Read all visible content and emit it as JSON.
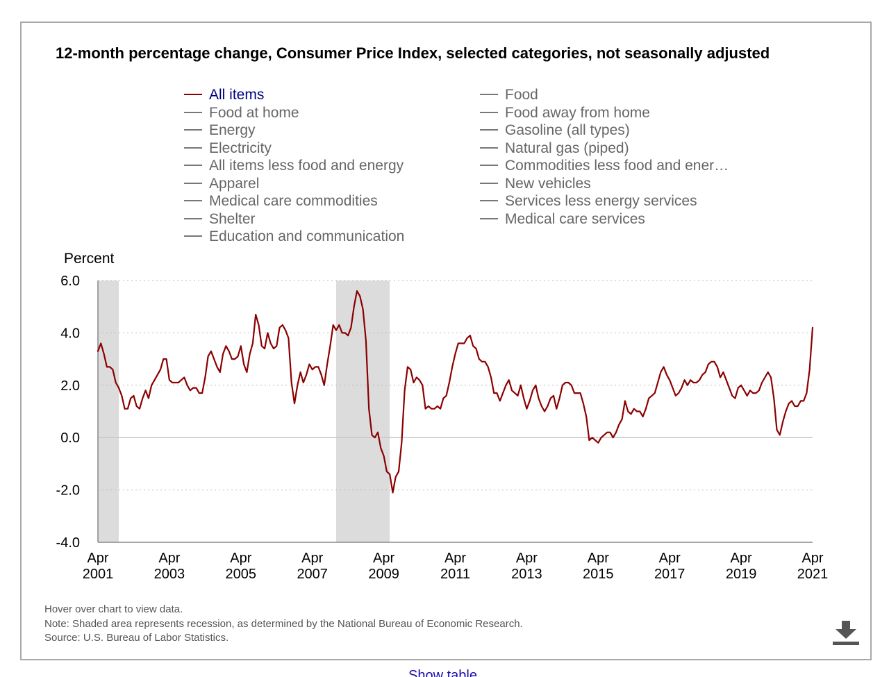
{
  "chart_title": "12-month percentage change, Consumer Price Index, selected categories, not seasonally adjusted",
  "legend": {
    "left": [
      "All items",
      "Food at home",
      "Energy",
      "Electricity",
      "All items less food and energy",
      "Apparel",
      "Medical care commodities",
      "Shelter",
      "Education and communication"
    ],
    "right": [
      "Food",
      "Food away from home",
      "Gasoline (all types)",
      "Natural gas (piped)",
      "Commodities less food and ener…",
      "New vehicles",
      "Services less energy services",
      "Medical care services"
    ]
  },
  "notes": {
    "hover": "Hover over chart to view data.",
    "note": "Note: Shaded area represents recession, as determined by the National Bureau of Economic Research.",
    "source": "Source: U.S. Bureau of Labor Statistics."
  },
  "show_table": "Show table",
  "colors": {
    "series": "#8b0000",
    "legend_active": "#000080",
    "recession": "#dcdcdc",
    "grid": "#bbbbbb"
  },
  "icons": {
    "download": "download-icon"
  },
  "chart_data": {
    "type": "line",
    "ylabel": "Percent",
    "ylim": [
      -4.0,
      6.0
    ],
    "yticks": [
      "6.0",
      "4.0",
      "2.0",
      "0.0",
      "-2.0",
      "-4.0"
    ],
    "xticks": [
      {
        "month": "Apr",
        "year": "2001"
      },
      {
        "month": "Apr",
        "year": "2003"
      },
      {
        "month": "Apr",
        "year": "2005"
      },
      {
        "month": "Apr",
        "year": "2007"
      },
      {
        "month": "Apr",
        "year": "2009"
      },
      {
        "month": "Apr",
        "year": "2011"
      },
      {
        "month": "Apr",
        "year": "2013"
      },
      {
        "month": "Apr",
        "year": "2015"
      },
      {
        "month": "Apr",
        "year": "2017"
      },
      {
        "month": "Apr",
        "year": "2019"
      },
      {
        "month": "Apr",
        "year": "2021"
      }
    ],
    "grid": true,
    "legend_position": "top",
    "recessions": [
      [
        "2001-03",
        "2001-11"
      ],
      [
        "2007-12",
        "2009-06"
      ]
    ],
    "series": [
      {
        "name": "All items",
        "color": "#8b0000",
        "x": [
          "2001-04",
          "2001-05",
          "2001-06",
          "2001-07",
          "2001-08",
          "2001-09",
          "2001-10",
          "2001-11",
          "2001-12",
          "2002-01",
          "2002-02",
          "2002-03",
          "2002-04",
          "2002-05",
          "2002-06",
          "2002-07",
          "2002-08",
          "2002-09",
          "2002-10",
          "2002-11",
          "2002-12",
          "2003-01",
          "2003-02",
          "2003-03",
          "2003-04",
          "2003-05",
          "2003-06",
          "2003-07",
          "2003-08",
          "2003-09",
          "2003-10",
          "2003-11",
          "2003-12",
          "2004-01",
          "2004-02",
          "2004-03",
          "2004-04",
          "2004-05",
          "2004-06",
          "2004-07",
          "2004-08",
          "2004-09",
          "2004-10",
          "2004-11",
          "2004-12",
          "2005-01",
          "2005-02",
          "2005-03",
          "2005-04",
          "2005-05",
          "2005-06",
          "2005-07",
          "2005-08",
          "2005-09",
          "2005-10",
          "2005-11",
          "2005-12",
          "2006-01",
          "2006-02",
          "2006-03",
          "2006-04",
          "2006-05",
          "2006-06",
          "2006-07",
          "2006-08",
          "2006-09",
          "2006-10",
          "2006-11",
          "2006-12",
          "2007-01",
          "2007-02",
          "2007-03",
          "2007-04",
          "2007-05",
          "2007-06",
          "2007-07",
          "2007-08",
          "2007-09",
          "2007-10",
          "2007-11",
          "2007-12",
          "2008-01",
          "2008-02",
          "2008-03",
          "2008-04",
          "2008-05",
          "2008-06",
          "2008-07",
          "2008-08",
          "2008-09",
          "2008-10",
          "2008-11",
          "2008-12",
          "2009-01",
          "2009-02",
          "2009-03",
          "2009-04",
          "2009-05",
          "2009-06",
          "2009-07",
          "2009-08",
          "2009-09",
          "2009-10",
          "2009-11",
          "2009-12",
          "2010-01",
          "2010-02",
          "2010-03",
          "2010-04",
          "2010-05",
          "2010-06",
          "2010-07",
          "2010-08",
          "2010-09",
          "2010-10",
          "2010-11",
          "2010-12",
          "2011-01",
          "2011-02",
          "2011-03",
          "2011-04",
          "2011-05",
          "2011-06",
          "2011-07",
          "2011-08",
          "2011-09",
          "2011-10",
          "2011-11",
          "2011-12",
          "2012-01",
          "2012-02",
          "2012-03",
          "2012-04",
          "2012-05",
          "2012-06",
          "2012-07",
          "2012-08",
          "2012-09",
          "2012-10",
          "2012-11",
          "2012-12",
          "2013-01",
          "2013-02",
          "2013-03",
          "2013-04",
          "2013-05",
          "2013-06",
          "2013-07",
          "2013-08",
          "2013-09",
          "2013-10",
          "2013-11",
          "2013-12",
          "2014-01",
          "2014-02",
          "2014-03",
          "2014-04",
          "2014-05",
          "2014-06",
          "2014-07",
          "2014-08",
          "2014-09",
          "2014-10",
          "2014-11",
          "2014-12",
          "2015-01",
          "2015-02",
          "2015-03",
          "2015-04",
          "2015-05",
          "2015-06",
          "2015-07",
          "2015-08",
          "2015-09",
          "2015-10",
          "2015-11",
          "2015-12",
          "2016-01",
          "2016-02",
          "2016-03",
          "2016-04",
          "2016-05",
          "2016-06",
          "2016-07",
          "2016-08",
          "2016-09",
          "2016-10",
          "2016-11",
          "2016-12",
          "2017-01",
          "2017-02",
          "2017-03",
          "2017-04",
          "2017-05",
          "2017-06",
          "2017-07",
          "2017-08",
          "2017-09",
          "2017-10",
          "2017-11",
          "2017-12",
          "2018-01",
          "2018-02",
          "2018-03",
          "2018-04",
          "2018-05",
          "2018-06",
          "2018-07",
          "2018-08",
          "2018-09",
          "2018-10",
          "2018-11",
          "2018-12",
          "2019-01",
          "2019-02",
          "2019-03",
          "2019-04",
          "2019-05",
          "2019-06",
          "2019-07",
          "2019-08",
          "2019-09",
          "2019-10",
          "2019-11",
          "2019-12",
          "2020-01",
          "2020-02",
          "2020-03",
          "2020-04",
          "2020-05",
          "2020-06",
          "2020-07",
          "2020-08",
          "2020-09",
          "2020-10",
          "2020-11",
          "2020-12",
          "2021-01",
          "2021-02",
          "2021-03",
          "2021-04"
        ],
        "values": [
          3.3,
          3.6,
          3.2,
          2.7,
          2.7,
          2.6,
          2.1,
          1.9,
          1.6,
          1.1,
          1.1,
          1.5,
          1.6,
          1.2,
          1.1,
          1.5,
          1.8,
          1.5,
          2.0,
          2.2,
          2.4,
          2.6,
          3.0,
          3.0,
          2.2,
          2.1,
          2.1,
          2.1,
          2.2,
          2.3,
          2.0,
          1.8,
          1.9,
          1.9,
          1.7,
          1.7,
          2.3,
          3.1,
          3.3,
          3.0,
          2.7,
          2.5,
          3.2,
          3.5,
          3.3,
          3.0,
          3.0,
          3.1,
          3.5,
          2.8,
          2.5,
          3.2,
          3.6,
          4.7,
          4.3,
          3.5,
          3.4,
          4.0,
          3.6,
          3.4,
          3.5,
          4.2,
          4.3,
          4.1,
          3.8,
          2.1,
          1.3,
          2.0,
          2.5,
          2.1,
          2.4,
          2.8,
          2.6,
          2.7,
          2.7,
          2.4,
          2.0,
          2.8,
          3.5,
          4.3,
          4.1,
          4.3,
          4.0,
          4.0,
          3.9,
          4.2,
          5.0,
          5.6,
          5.4,
          4.9,
          3.7,
          1.1,
          0.1,
          0.0,
          0.2,
          -0.4,
          -0.7,
          -1.3,
          -1.4,
          -2.1,
          -1.5,
          -1.3,
          -0.2,
          1.8,
          2.7,
          2.6,
          2.1,
          2.3,
          2.2,
          2.0,
          1.1,
          1.2,
          1.1,
          1.1,
          1.2,
          1.1,
          1.5,
          1.6,
          2.1,
          2.7,
          3.2,
          3.6,
          3.6,
          3.6,
          3.8,
          3.9,
          3.5,
          3.4,
          3.0,
          2.9,
          2.9,
          2.7,
          2.3,
          1.7,
          1.7,
          1.4,
          1.7,
          2.0,
          2.2,
          1.8,
          1.7,
          1.6,
          2.0,
          1.5,
          1.1,
          1.4,
          1.8,
          2.0,
          1.5,
          1.2,
          1.0,
          1.2,
          1.5,
          1.6,
          1.1,
          1.5,
          2.0,
          2.1,
          2.1,
          2.0,
          1.7,
          1.7,
          1.7,
          1.3,
          0.8,
          -0.1,
          0.0,
          -0.1,
          -0.2,
          0.0,
          0.1,
          0.2,
          0.2,
          0.0,
          0.2,
          0.5,
          0.7,
          1.4,
          1.0,
          0.9,
          1.1,
          1.0,
          1.0,
          0.8,
          1.1,
          1.5,
          1.6,
          1.7,
          2.1,
          2.5,
          2.7,
          2.4,
          2.2,
          1.9,
          1.6,
          1.7,
          1.9,
          2.2,
          2.0,
          2.2,
          2.1,
          2.1,
          2.2,
          2.4,
          2.5,
          2.8,
          2.9,
          2.9,
          2.7,
          2.3,
          2.5,
          2.2,
          1.9,
          1.6,
          1.5,
          1.9,
          2.0,
          1.8,
          1.6,
          1.8,
          1.7,
          1.7,
          1.8,
          2.1,
          2.3,
          2.5,
          2.3,
          1.5,
          0.3,
          0.1,
          0.6,
          1.0,
          1.3,
          1.4,
          1.2,
          1.2,
          1.4,
          1.4,
          1.7,
          2.6,
          4.2
        ]
      }
    ]
  }
}
